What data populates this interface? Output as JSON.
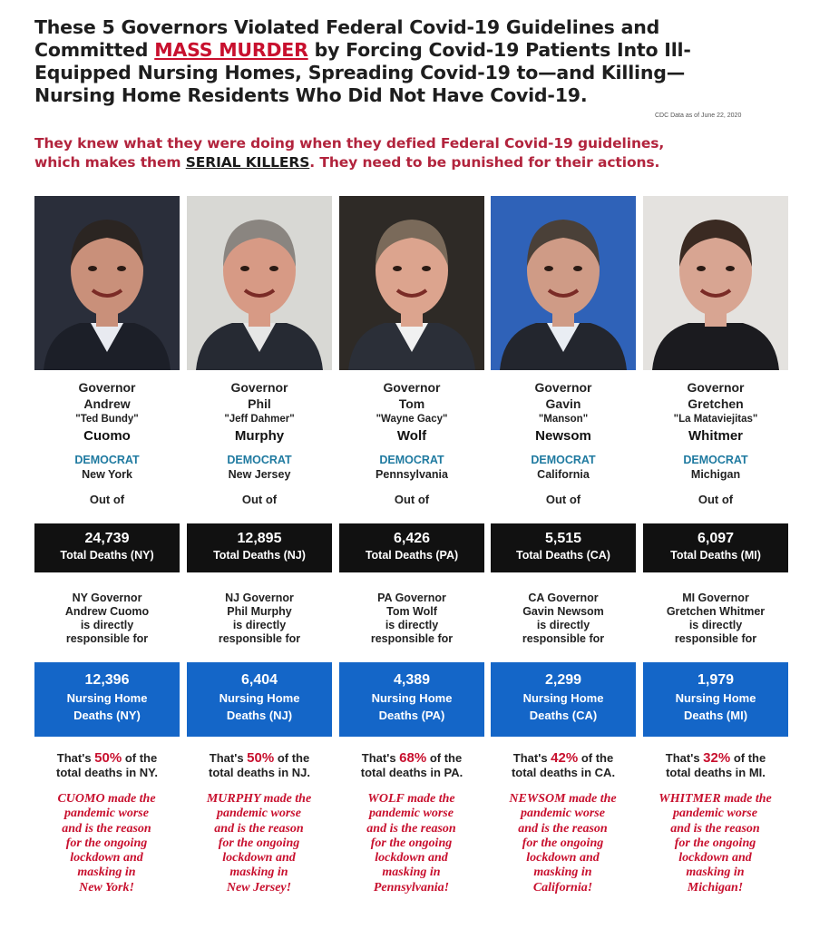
{
  "header": {
    "line_a": "These 5 Governors Violated Federal Covid-19 Guidelines and",
    "line_b_before": "Committed ",
    "line_b_highlight": "MASS MURDER",
    "line_b_after": " by Forcing Covid-19 Patients Into Ill-",
    "line_c": "Equipped Nursing Homes, Spreading Covid-19 to—and Killing—",
    "line_d": "Nursing Home Residents Who Did Not Have Covid-19.",
    "source_note": "CDC Data as of June 22, 2020"
  },
  "subheader": {
    "line_a": "They knew what they were doing when they defied Federal Covid-19 guidelines,",
    "line_b_before": "which makes them ",
    "line_b_highlight": "SERIAL KILLERS",
    "line_b_after": ". They need to be punished for their actions."
  },
  "governors": [
    {
      "title": "Governor",
      "first": "Andrew",
      "nickname": "\"Ted Bundy\"",
      "last": "Cuomo",
      "party": "DEMOCRAT",
      "state": "New York",
      "out_of": "Out of",
      "total_deaths": "24,739",
      "total_label": "Total Deaths (NY)",
      "resp_1": "NY Governor",
      "resp_2": "Andrew Cuomo",
      "resp_3": "is directly",
      "resp_4": "responsible for",
      "nh_deaths": "12,396",
      "nh_label_1": "Nursing Home",
      "nh_label_2": "Deaths (NY)",
      "pct_pre": "That's ",
      "pct": "50%",
      "pct_post": " of the",
      "pct_line2": "total deaths in NY.",
      "blame": [
        "CUOMO made the",
        "pandemic worse",
        "and is the reason",
        "for the ongoing",
        "lockdown and",
        "masking in",
        "New York!"
      ],
      "bg": "#2a2e3a",
      "skin": "#c9907a",
      "hair": "#2b2522",
      "suit": "#1c1f28",
      "shirt": "#e8eaf0"
    },
    {
      "title": "Governor",
      "first": "Phil",
      "nickname": "\"Jeff Dahmer\"",
      "last": "Murphy",
      "party": "DEMOCRAT",
      "state": "New Jersey",
      "out_of": "Out of",
      "total_deaths": "12,895",
      "total_label": "Total Deaths (NJ)",
      "resp_1": "NJ Governor",
      "resp_2": "Phil Murphy",
      "resp_3": "is directly",
      "resp_4": "responsible for",
      "nh_deaths": "6,404",
      "nh_label_1": "Nursing Home",
      "nh_label_2": "Deaths (NJ)",
      "pct_pre": "That's ",
      "pct": "50%",
      "pct_post": " of the",
      "pct_line2": "total deaths in NJ.",
      "blame": [
        "MURPHY made the",
        "pandemic worse",
        "and is the reason",
        "for the ongoing",
        "lockdown and",
        "masking in",
        "New Jersey!"
      ],
      "bg": "#d8d8d4",
      "skin": "#d79a85",
      "hair": "#8a8580",
      "suit": "#262a33",
      "shirt": "#e6e6e6"
    },
    {
      "title": "Governor",
      "first": "Tom",
      "nickname": "\"Wayne Gacy\"",
      "last": "Wolf",
      "party": "DEMOCRAT",
      "state": "Pennsylvania",
      "out_of": "Out of",
      "total_deaths": "6,426",
      "total_label": "Total Deaths (PA)",
      "resp_1": "PA Governor",
      "resp_2": "Tom Wolf",
      "resp_3": "is directly",
      "resp_4": "responsible for",
      "nh_deaths": "4,389",
      "nh_label_1": "Nursing Home",
      "nh_label_2": "Deaths (PA)",
      "pct_pre": "That's ",
      "pct": "68%",
      "pct_post": " of the",
      "pct_line2": "total deaths in PA.",
      "blame": [
        "WOLF made the",
        "pandemic worse",
        "and is the reason",
        "for the ongoing",
        "lockdown and",
        "masking in",
        "Pennsylvania!"
      ],
      "bg": "#2e2a26",
      "skin": "#dca48e",
      "hair": "#7a6a5a",
      "suit": "#2b2f38",
      "shirt": "#f1f1f1"
    },
    {
      "title": "Governor",
      "first": "Gavin",
      "nickname": "\"Manson\"",
      "last": "Newsom",
      "party": "DEMOCRAT",
      "state": "California",
      "out_of": "Out of",
      "total_deaths": "5,515",
      "total_label": "Total Deaths (CA)",
      "resp_1": "CA Governor",
      "resp_2": "Gavin Newsom",
      "resp_3": "is directly",
      "resp_4": "responsible for",
      "nh_deaths": "2,299",
      "nh_label_1": "Nursing Home",
      "nh_label_2": "Deaths (CA)",
      "pct_pre": "That's ",
      "pct": "42%",
      "pct_post": " of the",
      "pct_line2": "total deaths in CA.",
      "blame": [
        "NEWSOM made the",
        "pandemic worse",
        "and is the reason",
        "for the ongoing",
        "lockdown and",
        "masking in",
        "California!"
      ],
      "bg": "#2f62b8",
      "skin": "#cf9b86",
      "hair": "#4a4038",
      "suit": "#23262e",
      "shirt": "#e9edf3"
    },
    {
      "title": "Governor",
      "first": "Gretchen",
      "nickname": "\"La Mataviejitas\"",
      "last": "Whitmer",
      "party": "DEMOCRAT",
      "state": "Michigan",
      "out_of": "Out of",
      "total_deaths": "6,097",
      "total_label": "Total Deaths (MI)",
      "resp_1": "MI Governor",
      "resp_2": "Gretchen Whitmer",
      "resp_3": "is directly",
      "resp_4": "responsible for",
      "nh_deaths": "1,979",
      "nh_label_1": "Nursing Home",
      "nh_label_2": "Deaths (MI)",
      "pct_pre": "That's ",
      "pct": "32%",
      "pct_post": " of the",
      "pct_line2": "total deaths in MI.",
      "blame": [
        "WHITMER made the",
        "pandemic worse",
        "and is the reason",
        "for the ongoing",
        "lockdown and",
        "masking in",
        "Michigan!"
      ],
      "bg": "#e4e2df",
      "skin": "#d8a592",
      "hair": "#3a2a22",
      "suit": "#1b1b1f",
      "shirt": "#1b1b1f"
    }
  ],
  "colors": {
    "red": "#c8102e",
    "blue_box": "#1466c8",
    "party_teal": "#1f7aa0",
    "black_box": "#111111"
  }
}
